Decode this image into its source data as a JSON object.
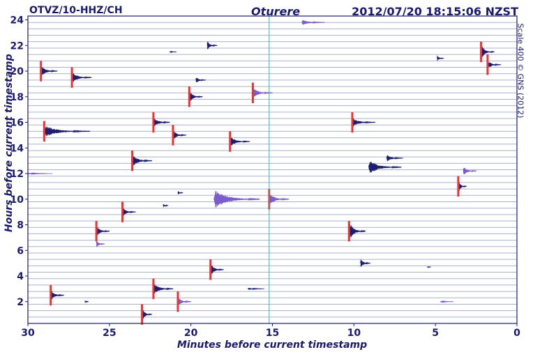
{
  "header": {
    "station": "OTVZ/10-HHZ/CH",
    "site": "Oturere",
    "timestamp": "2012/07/20 18:15:06 NZST"
  },
  "credit": "Scale 400 © GNS (2012)",
  "colors": {
    "trace_dark": "#1e1e6e",
    "trace_light": "#7a5ccc",
    "grid": "#aab0c8",
    "marker": "#ee3333",
    "current_line": "#2fb8a8",
    "text": "#1a1a6e"
  },
  "chart_data": {
    "type": "seismogram-helicorder",
    "title": "",
    "xlabel": "Minutes before current timestamp",
    "ylabel": "Hours before current timestamp",
    "xlim": [
      30,
      0
    ],
    "ylim": [
      0.3,
      24.3
    ],
    "x_ticks": [
      30,
      25,
      20,
      15,
      10,
      5,
      0
    ],
    "y_ticks": [
      2,
      4,
      6,
      8,
      10,
      12,
      14,
      16,
      18,
      20,
      22,
      24
    ],
    "row_interval_hours": 0.5,
    "current_time_marker_minutes": 15.2,
    "events": [
      {
        "min": 29.2,
        "hr": 20.0,
        "amp": 1.5,
        "dur": 1.0,
        "shade": "dark",
        "marker": true
      },
      {
        "min": 27.3,
        "hr": 19.5,
        "amp": 1.5,
        "dur": 1.2,
        "shade": "dark",
        "marker": true
      },
      {
        "min": 29.0,
        "hr": 15.3,
        "amp": 1.5,
        "dur": 2.8,
        "shade": "dark",
        "marker": true
      },
      {
        "min": 21.3,
        "hr": 21.5,
        "amp": 0.2,
        "dur": 0.4,
        "shade": "dark",
        "marker": false
      },
      {
        "min": 19.0,
        "hr": 22.0,
        "amp": 1.2,
        "dur": 0.6,
        "shade": "dark",
        "marker": false
      },
      {
        "min": 20.1,
        "hr": 18.0,
        "amp": 1.6,
        "dur": 0.8,
        "shade": "dark",
        "marker": true
      },
      {
        "min": 19.7,
        "hr": 19.3,
        "amp": 1.0,
        "dur": 0.6,
        "shade": "dark",
        "marker": false
      },
      {
        "min": 16.2,
        "hr": 18.3,
        "amp": 1.3,
        "dur": 1.2,
        "shade": "light",
        "marker": true
      },
      {
        "min": 22.3,
        "hr": 16.0,
        "amp": 1.5,
        "dur": 1.0,
        "shade": "dark",
        "marker": true
      },
      {
        "min": 21.1,
        "hr": 15.0,
        "amp": 1.4,
        "dur": 0.8,
        "shade": "dark",
        "marker": true
      },
      {
        "min": 17.6,
        "hr": 14.5,
        "amp": 1.5,
        "dur": 1.2,
        "shade": "dark",
        "marker": true
      },
      {
        "min": 23.6,
        "hr": 13.0,
        "amp": 1.6,
        "dur": 1.2,
        "shade": "dark",
        "marker": true
      },
      {
        "min": 10.1,
        "hr": 16.0,
        "amp": 1.2,
        "dur": 1.4,
        "shade": "dark",
        "marker": true
      },
      {
        "min": 9.1,
        "hr": 12.5,
        "amp": 2.0,
        "dur": 2.0,
        "shade": "dark",
        "marker": false
      },
      {
        "min": 8.0,
        "hr": 13.2,
        "amp": 1.0,
        "dur": 1.0,
        "shade": "dark",
        "marker": false
      },
      {
        "min": 4.9,
        "hr": 21.0,
        "amp": 0.8,
        "dur": 0.4,
        "shade": "dark",
        "marker": false
      },
      {
        "min": 2.2,
        "hr": 21.5,
        "amp": 2.0,
        "dur": 0.8,
        "shade": "dark",
        "marker": true
      },
      {
        "min": 1.8,
        "hr": 20.5,
        "amp": 1.2,
        "dur": 0.8,
        "shade": "dark",
        "marker": true
      },
      {
        "min": 30.0,
        "hr": 12.0,
        "amp": 0.2,
        "dur": 1.5,
        "shade": "light",
        "marker": false
      },
      {
        "min": 24.2,
        "hr": 9.0,
        "amp": 1.3,
        "dur": 0.8,
        "shade": "dark",
        "marker": true
      },
      {
        "min": 25.8,
        "hr": 7.5,
        "amp": 1.5,
        "dur": 0.8,
        "shade": "dark",
        "marker": true
      },
      {
        "min": 25.8,
        "hr": 6.5,
        "amp": 1.0,
        "dur": 0.5,
        "shade": "light",
        "marker": false
      },
      {
        "min": 21.7,
        "hr": 9.5,
        "amp": 0.6,
        "dur": 0.3,
        "shade": "dark",
        "marker": false
      },
      {
        "min": 20.8,
        "hr": 10.5,
        "amp": 0.6,
        "dur": 0.3,
        "shade": "dark",
        "marker": false
      },
      {
        "min": 18.6,
        "hr": 10.0,
        "amp": 2.6,
        "dur": 2.8,
        "shade": "light",
        "marker": false
      },
      {
        "min": 15.2,
        "hr": 10.0,
        "amp": 1.6,
        "dur": 1.2,
        "shade": "light",
        "marker": true
      },
      {
        "min": 10.3,
        "hr": 7.5,
        "amp": 2.5,
        "dur": 1.0,
        "shade": "dark",
        "marker": true
      },
      {
        "min": 9.6,
        "hr": 5.0,
        "amp": 1.2,
        "dur": 0.6,
        "shade": "dark",
        "marker": false
      },
      {
        "min": 3.6,
        "hr": 11.0,
        "amp": 1.8,
        "dur": 0.5,
        "shade": "dark",
        "marker": true
      },
      {
        "min": 3.3,
        "hr": 12.2,
        "amp": 1.4,
        "dur": 0.8,
        "shade": "light",
        "marker": false
      },
      {
        "min": 5.5,
        "hr": 4.7,
        "amp": 0.2,
        "dur": 0.2,
        "shade": "dark",
        "marker": false
      },
      {
        "min": 28.6,
        "hr": 2.5,
        "amp": 1.6,
        "dur": 0.8,
        "shade": "dark",
        "marker": true
      },
      {
        "min": 26.5,
        "hr": 2.0,
        "amp": 0.4,
        "dur": 0.2,
        "shade": "dark",
        "marker": false
      },
      {
        "min": 23.0,
        "hr": 1.0,
        "amp": 1.8,
        "dur": 0.6,
        "shade": "dark",
        "marker": true
      },
      {
        "min": 22.3,
        "hr": 3.0,
        "amp": 1.6,
        "dur": 1.2,
        "shade": "dark",
        "marker": true
      },
      {
        "min": 20.8,
        "hr": 2.0,
        "amp": 1.2,
        "dur": 0.8,
        "shade": "light",
        "marker": true
      },
      {
        "min": 18.8,
        "hr": 4.5,
        "amp": 1.6,
        "dur": 0.8,
        "shade": "dark",
        "marker": true
      },
      {
        "min": 16.5,
        "hr": 3.0,
        "amp": 0.3,
        "dur": 1.0,
        "shade": "dark",
        "marker": false
      },
      {
        "min": 13.2,
        "hr": 23.8,
        "amp": 0.8,
        "dur": 1.4,
        "shade": "light",
        "marker": false
      },
      {
        "min": 4.7,
        "hr": 2.0,
        "amp": 0.2,
        "dur": 0.8,
        "shade": "light",
        "marker": false
      }
    ]
  }
}
